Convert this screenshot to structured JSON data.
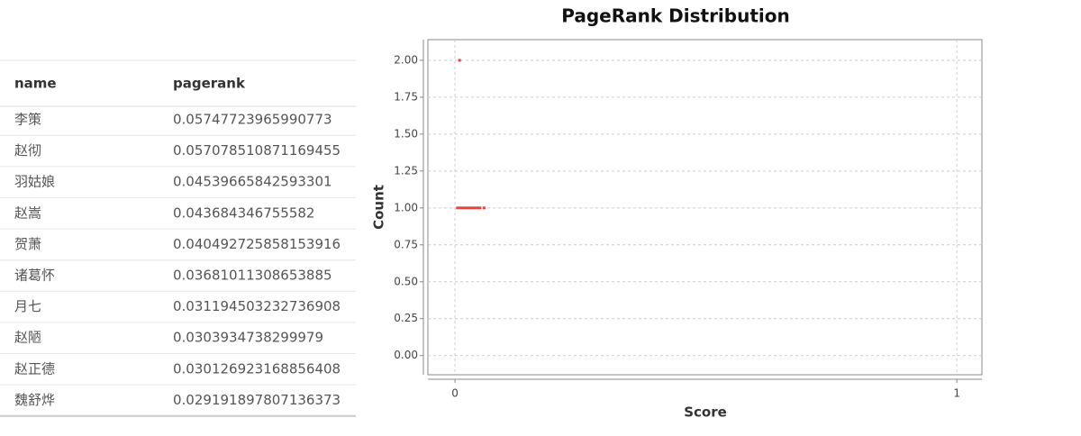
{
  "table": {
    "columns": [
      "name",
      "pagerank"
    ],
    "rows": [
      [
        "李策",
        "0.05747723965990773"
      ],
      [
        "赵彻",
        "0.057078510871169455"
      ],
      [
        "羽姑娘",
        "0.04539665842593301"
      ],
      [
        "赵嵩",
        "0.043684346755582"
      ],
      [
        "贺萧",
        "0.040492725858153916"
      ],
      [
        "诸葛怀",
        "0.03681011308653885"
      ],
      [
        "月七",
        "0.031194503232736908"
      ],
      [
        "赵陋",
        "0.0303934738299979"
      ],
      [
        "赵正德",
        "0.030126923168856408"
      ],
      [
        "魏舒烨",
        "0.029191897807136373"
      ]
    ]
  },
  "chart_data": {
    "type": "scatter",
    "title": "PageRank Distribution",
    "x_label": "Score",
    "y_label": "Count",
    "x": [
      0.009,
      0.005,
      0.01,
      0.015,
      0.02,
      0.025,
      0.03,
      0.035,
      0.04,
      0.045,
      0.05,
      0.058
    ],
    "values": [
      2,
      1,
      1,
      1,
      1,
      1,
      1,
      1,
      1,
      1,
      1,
      1
    ],
    "color": "#e8413c",
    "xlim": [
      -0.054,
      1.05
    ],
    "xticks": [
      0,
      1
    ],
    "ylim": [
      -0.13,
      2.14
    ],
    "yticks": [
      {
        "value": 0,
        "label": "0.00"
      },
      {
        "value": 0.25,
        "label": "0.25"
      },
      {
        "value": 0.5,
        "label": "0.50"
      },
      {
        "value": 0.75,
        "label": "0.75"
      },
      {
        "value": 1,
        "label": "1.00"
      },
      {
        "value": 1.25,
        "label": "1.25"
      },
      {
        "value": 1.5,
        "label": "1.50"
      },
      {
        "value": 1.75,
        "label": "1.75"
      },
      {
        "value": 2,
        "label": "2.00"
      }
    ],
    "grid": true
  }
}
